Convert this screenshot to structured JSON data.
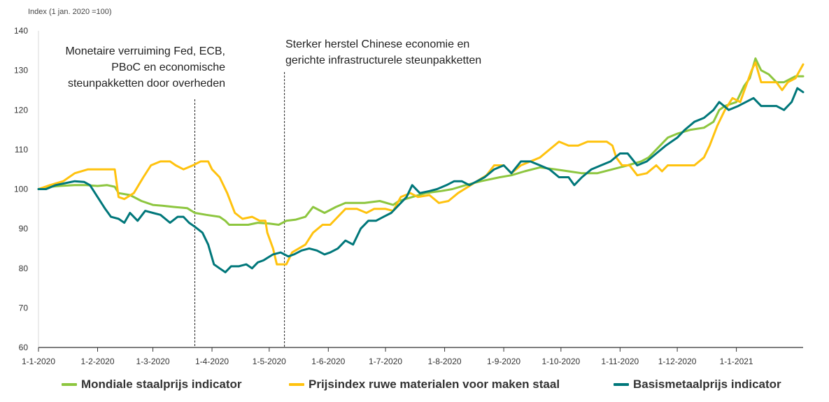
{
  "chart_data": {
    "type": "line",
    "ylabel": "Index (1 jan. 2020 =100)",
    "ylim": [
      60,
      140
    ],
    "yticks": [
      "60",
      "70",
      "80",
      "90",
      "100",
      "110",
      "120",
      "130",
      "140"
    ],
    "x_tick_labels": [
      "1-1-2020",
      "1-2-2020",
      "1-3-2020",
      "1-4-2020",
      "1-5-2020",
      "1-6-2020",
      "1-7-2020",
      "1-8-2020",
      "1-9-2020",
      "1-10-2020",
      "1-11-2020",
      "1-12-2020",
      "1-1-2021"
    ],
    "annotations": [
      {
        "lines": [
          "Monetaire verruiming Fed, ECB,",
          "PBoC en economische",
          "steunpakketten door overheden"
        ],
        "x": "2020-03-23"
      },
      {
        "lines": [
          "Sterker herstel Chinese economie en",
          "gerichte infrastructurele steunpakketten"
        ],
        "x": "2020-05-09"
      }
    ],
    "legend_position": "bottom",
    "grid": false,
    "series": [
      {
        "name": "Mondiale staalprijs indicator",
        "color": "#8DC63F",
        "points": [
          [
            "2020-01-01",
            100
          ],
          [
            "2020-01-05",
            100.5
          ],
          [
            "2020-01-12",
            100.8
          ],
          [
            "2020-01-20",
            101
          ],
          [
            "2020-01-26",
            101
          ],
          [
            "2020-02-01",
            100.8
          ],
          [
            "2020-02-06",
            101
          ],
          [
            "2020-02-10",
            100.6
          ],
          [
            "2020-02-12",
            99
          ],
          [
            "2020-02-18",
            98.5
          ],
          [
            "2020-02-24",
            97
          ],
          [
            "2020-03-01",
            96
          ],
          [
            "2020-03-06",
            95.8
          ],
          [
            "2020-03-12",
            95.5
          ],
          [
            "2020-03-19",
            95.2
          ],
          [
            "2020-03-23",
            94
          ],
          [
            "2020-03-29",
            93.5
          ],
          [
            "2020-04-05",
            93
          ],
          [
            "2020-04-08",
            92
          ],
          [
            "2020-04-10",
            91
          ],
          [
            "2020-04-20",
            91
          ],
          [
            "2020-04-25",
            91.5
          ],
          [
            "2020-05-01",
            91.3
          ],
          [
            "2020-05-06",
            91
          ],
          [
            "2020-05-10",
            92
          ],
          [
            "2020-05-15",
            92.3
          ],
          [
            "2020-05-20",
            93
          ],
          [
            "2020-05-24",
            95.5
          ],
          [
            "2020-05-30",
            94
          ],
          [
            "2020-06-05",
            95.5
          ],
          [
            "2020-06-10",
            96.5
          ],
          [
            "2020-06-20",
            96.5
          ],
          [
            "2020-06-28",
            97
          ],
          [
            "2020-07-05",
            96
          ],
          [
            "2020-07-08",
            97
          ],
          [
            "2020-07-15",
            98
          ],
          [
            "2020-07-22",
            99
          ],
          [
            "2020-07-30",
            99.5
          ],
          [
            "2020-08-05",
            100
          ],
          [
            "2020-08-12",
            101
          ],
          [
            "2020-08-20",
            102
          ],
          [
            "2020-08-30",
            103
          ],
          [
            "2020-09-05",
            103.5
          ],
          [
            "2020-09-12",
            104.5
          ],
          [
            "2020-09-20",
            105.5
          ],
          [
            "2020-09-28",
            105
          ],
          [
            "2020-10-05",
            104.5
          ],
          [
            "2020-10-12",
            104
          ],
          [
            "2020-10-20",
            104
          ],
          [
            "2020-10-28",
            105
          ],
          [
            "2020-11-05",
            106
          ],
          [
            "2020-11-12",
            107
          ],
          [
            "2020-11-16",
            108
          ],
          [
            "2020-11-20",
            110
          ],
          [
            "2020-11-26",
            113
          ],
          [
            "2020-12-01",
            114
          ],
          [
            "2020-12-08",
            115
          ],
          [
            "2020-12-15",
            115.5
          ],
          [
            "2020-12-20",
            117
          ],
          [
            "2020-12-23",
            120
          ],
          [
            "2020-12-26",
            121
          ],
          [
            "2021-01-01",
            122
          ],
          [
            "2021-01-05",
            126
          ],
          [
            "2021-01-08",
            128
          ],
          [
            "2021-01-11",
            133
          ],
          [
            "2021-01-14",
            130
          ],
          [
            "2021-01-18",
            129
          ],
          [
            "2021-01-22",
            127
          ],
          [
            "2021-01-26",
            127
          ],
          [
            "2021-02-01",
            128.5
          ],
          [
            "2021-02-05",
            128.5
          ]
        ]
      },
      {
        "name": "Prijsindex ruwe materialen voor maken staal",
        "color": "#FFC20E",
        "points": [
          [
            "2020-01-01",
            100
          ],
          [
            "2020-01-07",
            101
          ],
          [
            "2020-01-14",
            102
          ],
          [
            "2020-01-20",
            104
          ],
          [
            "2020-01-27",
            105
          ],
          [
            "2020-02-01",
            105
          ],
          [
            "2020-02-05",
            105
          ],
          [
            "2020-02-10",
            105
          ],
          [
            "2020-02-12",
            98
          ],
          [
            "2020-02-15",
            97.5
          ],
          [
            "2020-02-20",
            99
          ],
          [
            "2020-02-25",
            103
          ],
          [
            "2020-02-29",
            106
          ],
          [
            "2020-03-05",
            107
          ],
          [
            "2020-03-10",
            107
          ],
          [
            "2020-03-13",
            106
          ],
          [
            "2020-03-17",
            105
          ],
          [
            "2020-03-22",
            106
          ],
          [
            "2020-03-26",
            107
          ],
          [
            "2020-03-30",
            107
          ],
          [
            "2020-04-01",
            105
          ],
          [
            "2020-04-05",
            103
          ],
          [
            "2020-04-09",
            99
          ],
          [
            "2020-04-13",
            94
          ],
          [
            "2020-04-17",
            92.5
          ],
          [
            "2020-04-22",
            93
          ],
          [
            "2020-04-26",
            92
          ],
          [
            "2020-04-29",
            92
          ],
          [
            "2020-04-30",
            89
          ],
          [
            "2020-05-03",
            85
          ],
          [
            "2020-05-05",
            81
          ],
          [
            "2020-05-10",
            81
          ],
          [
            "2020-05-13",
            84
          ],
          [
            "2020-05-20",
            86
          ],
          [
            "2020-05-24",
            89
          ],
          [
            "2020-05-29",
            91
          ],
          [
            "2020-06-02",
            91
          ],
          [
            "2020-06-06",
            93
          ],
          [
            "2020-06-10",
            95
          ],
          [
            "2020-06-16",
            95
          ],
          [
            "2020-06-21",
            94
          ],
          [
            "2020-06-25",
            95
          ],
          [
            "2020-07-01",
            95
          ],
          [
            "2020-07-05",
            94.5
          ],
          [
            "2020-07-09",
            98
          ],
          [
            "2020-07-14",
            99
          ],
          [
            "2020-07-18",
            98
          ],
          [
            "2020-07-24",
            98.5
          ],
          [
            "2020-07-29",
            96.5
          ],
          [
            "2020-08-03",
            97
          ],
          [
            "2020-08-08",
            99
          ],
          [
            "2020-08-13",
            100.5
          ],
          [
            "2020-08-18",
            102
          ],
          [
            "2020-08-23",
            103.5
          ],
          [
            "2020-08-27",
            106
          ],
          [
            "2020-09-01",
            106
          ],
          [
            "2020-09-05",
            104
          ],
          [
            "2020-09-10",
            106
          ],
          [
            "2020-09-15",
            107
          ],
          [
            "2020-09-20",
            108
          ],
          [
            "2020-09-25",
            110
          ],
          [
            "2020-09-30",
            112
          ],
          [
            "2020-10-05",
            111
          ],
          [
            "2020-10-10",
            111
          ],
          [
            "2020-10-15",
            112
          ],
          [
            "2020-10-20",
            112
          ],
          [
            "2020-10-25",
            112
          ],
          [
            "2020-10-28",
            111
          ],
          [
            "2020-10-30",
            108
          ],
          [
            "2020-11-02",
            106
          ],
          [
            "2020-11-06",
            106
          ],
          [
            "2020-11-10",
            103.5
          ],
          [
            "2020-11-15",
            104
          ],
          [
            "2020-11-20",
            106
          ],
          [
            "2020-11-23",
            104.5
          ],
          [
            "2020-11-26",
            106
          ],
          [
            "2020-12-01",
            106
          ],
          [
            "2020-12-05",
            106
          ],
          [
            "2020-12-10",
            106
          ],
          [
            "2020-12-15",
            108
          ],
          [
            "2020-12-18",
            111
          ],
          [
            "2020-12-22",
            116
          ],
          [
            "2020-12-26",
            120
          ],
          [
            "2020-12-30",
            123
          ],
          [
            "2021-01-03",
            122
          ],
          [
            "2021-01-06",
            126
          ],
          [
            "2021-01-09",
            130
          ],
          [
            "2021-01-11",
            132
          ],
          [
            "2021-01-14",
            127
          ],
          [
            "2021-01-18",
            127
          ],
          [
            "2021-01-22",
            127
          ],
          [
            "2021-01-25",
            125
          ],
          [
            "2021-01-28",
            127
          ],
          [
            "2021-02-01",
            128
          ],
          [
            "2021-02-05",
            131.5
          ]
        ]
      },
      {
        "name": "Basismetaalprijs indicator",
        "color": "#00777A",
        "points": [
          [
            "2020-01-01",
            100
          ],
          [
            "2020-01-05",
            100
          ],
          [
            "2020-01-10",
            101
          ],
          [
            "2020-01-15",
            101.5
          ],
          [
            "2020-01-20",
            102
          ],
          [
            "2020-01-25",
            101.8
          ],
          [
            "2020-01-28",
            101
          ],
          [
            "2020-02-01",
            98
          ],
          [
            "2020-02-05",
            95
          ],
          [
            "2020-02-08",
            93
          ],
          [
            "2020-02-12",
            92.5
          ],
          [
            "2020-02-15",
            91.5
          ],
          [
            "2020-02-18",
            94
          ],
          [
            "2020-02-22",
            92
          ],
          [
            "2020-02-26",
            94.5
          ],
          [
            "2020-03-01",
            94
          ],
          [
            "2020-03-05",
            93.5
          ],
          [
            "2020-03-10",
            91.5
          ],
          [
            "2020-03-14",
            93
          ],
          [
            "2020-03-17",
            93
          ],
          [
            "2020-03-20",
            91.5
          ],
          [
            "2020-03-23",
            90.5
          ],
          [
            "2020-03-27",
            89
          ],
          [
            "2020-03-30",
            86
          ],
          [
            "2020-04-02",
            81
          ],
          [
            "2020-04-05",
            80
          ],
          [
            "2020-04-08",
            79
          ],
          [
            "2020-04-11",
            80.5
          ],
          [
            "2020-04-15",
            80.5
          ],
          [
            "2020-04-19",
            81
          ],
          [
            "2020-04-22",
            80
          ],
          [
            "2020-04-25",
            81.5
          ],
          [
            "2020-04-28",
            82
          ],
          [
            "2020-05-03",
            83.5
          ],
          [
            "2020-05-07",
            84
          ],
          [
            "2020-05-11",
            83
          ],
          [
            "2020-05-14",
            83.5
          ],
          [
            "2020-05-18",
            84.5
          ],
          [
            "2020-05-22",
            85
          ],
          [
            "2020-05-26",
            84.5
          ],
          [
            "2020-05-30",
            83.5
          ],
          [
            "2020-06-02",
            84
          ],
          [
            "2020-06-06",
            85
          ],
          [
            "2020-06-10",
            87
          ],
          [
            "2020-06-14",
            86
          ],
          [
            "2020-06-18",
            90
          ],
          [
            "2020-06-22",
            92
          ],
          [
            "2020-06-26",
            92
          ],
          [
            "2020-06-30",
            93
          ],
          [
            "2020-07-04",
            94
          ],
          [
            "2020-07-08",
            96
          ],
          [
            "2020-07-12",
            98
          ],
          [
            "2020-07-15",
            101
          ],
          [
            "2020-07-19",
            99
          ],
          [
            "2020-07-24",
            99.5
          ],
          [
            "2020-07-28",
            100
          ],
          [
            "2020-08-02",
            101
          ],
          [
            "2020-08-06",
            102
          ],
          [
            "2020-08-10",
            102
          ],
          [
            "2020-08-14",
            101
          ],
          [
            "2020-08-18",
            102
          ],
          [
            "2020-08-22",
            103
          ],
          [
            "2020-08-27",
            105
          ],
          [
            "2020-09-01",
            106
          ],
          [
            "2020-09-05",
            104
          ],
          [
            "2020-09-10",
            107
          ],
          [
            "2020-09-15",
            107
          ],
          [
            "2020-09-20",
            106
          ],
          [
            "2020-09-25",
            105
          ],
          [
            "2020-09-30",
            103
          ],
          [
            "2020-10-05",
            103
          ],
          [
            "2020-10-08",
            101
          ],
          [
            "2020-10-12",
            103
          ],
          [
            "2020-10-17",
            105
          ],
          [
            "2020-10-22",
            106
          ],
          [
            "2020-10-27",
            107
          ],
          [
            "2020-11-01",
            109
          ],
          [
            "2020-11-05",
            109
          ],
          [
            "2020-11-10",
            106
          ],
          [
            "2020-11-15",
            107
          ],
          [
            "2020-11-20",
            109
          ],
          [
            "2020-11-25",
            111
          ],
          [
            "2020-12-01",
            113
          ],
          [
            "2020-12-05",
            115
          ],
          [
            "2020-12-10",
            117
          ],
          [
            "2020-12-15",
            118
          ],
          [
            "2020-12-20",
            120
          ],
          [
            "2020-12-23",
            122
          ],
          [
            "2020-12-28",
            120
          ],
          [
            "2021-01-02",
            121
          ],
          [
            "2021-01-06",
            122
          ],
          [
            "2021-01-10",
            123
          ],
          [
            "2021-01-14",
            121
          ],
          [
            "2021-01-18",
            121
          ],
          [
            "2021-01-22",
            121
          ],
          [
            "2021-01-26",
            120
          ],
          [
            "2021-01-30",
            122
          ],
          [
            "2021-02-02",
            125.5
          ],
          [
            "2021-02-05",
            124.5
          ]
        ]
      }
    ]
  }
}
